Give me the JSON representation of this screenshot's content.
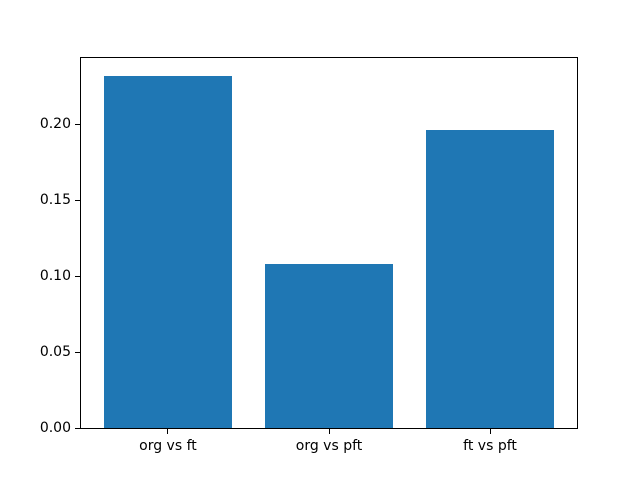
{
  "chart_data": {
    "type": "bar",
    "title": "",
    "xlabel": "",
    "ylabel": "",
    "categories": [
      "org vs ft",
      "org vs pft",
      "ft vs pft"
    ],
    "values": [
      0.232,
      0.108,
      0.196
    ],
    "bar_color": "#1f77b4",
    "ylim": [
      0,
      0.2436
    ],
    "xlim": [
      -0.54,
      2.54
    ],
    "yticks": [
      0.0,
      0.05,
      0.1,
      0.15,
      0.2
    ],
    "ytick_labels": [
      "0.00",
      "0.05",
      "0.10",
      "0.15",
      "0.20"
    ],
    "bar_width_fraction": 0.8,
    "grid": false,
    "legend": null,
    "background_color": "#ffffff",
    "spine_color": "#000000"
  }
}
